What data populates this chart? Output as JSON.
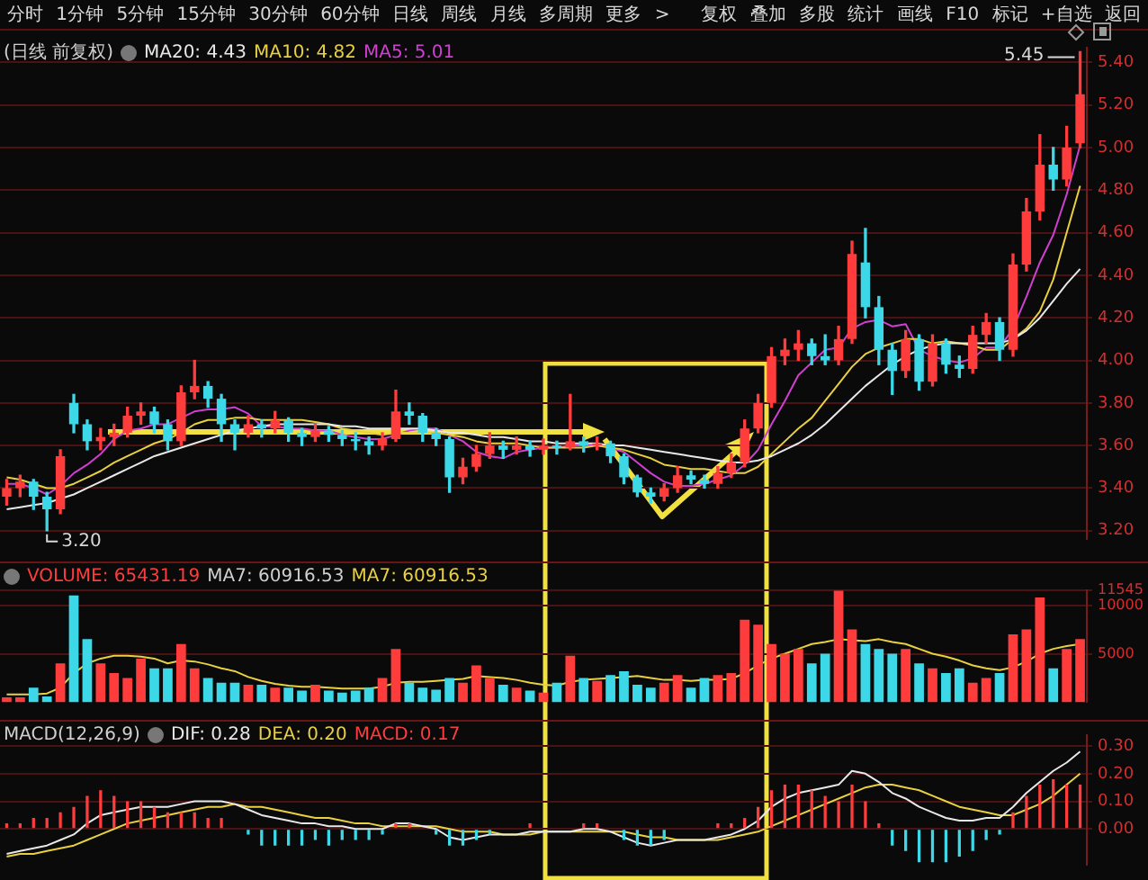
{
  "chart_data": [
    {
      "type": "candlestick",
      "title": "(日线 前复权)",
      "legend": "top left",
      "grid": "y",
      "tick_labels": "y",
      "annotations": [
        "分时 1分钟 5分钟 15分钟 30分钟 60分钟 日线 周线 月线 多周期 更多 >",
        "复权 叠加 多股 统计 画线 F10 标记 +自选 返回",
        "5.45",
        "3.20"
      ],
      "categories": [
        null,
        null,
        null,
        null,
        null,
        null,
        null,
        null,
        null,
        null,
        null,
        null,
        null,
        null,
        null,
        null,
        null,
        null,
        null,
        null,
        null,
        null,
        null,
        null,
        null,
        null,
        null,
        null,
        null,
        null,
        null,
        null,
        null,
        null,
        null,
        null,
        null,
        null,
        null,
        null,
        null,
        null,
        null,
        null,
        null,
        null,
        null,
        null,
        null,
        null,
        null,
        null,
        null,
        null,
        null,
        null,
        null,
        null,
        null,
        null,
        null,
        null,
        null,
        null,
        null,
        null,
        null,
        null,
        null,
        null,
        null,
        null,
        null,
        null,
        null,
        null,
        null,
        null,
        null,
        null,
        null
      ],
      "ylim": [
        3.16,
        5.47
      ],
      "yticks": [
        {
          "value": 3.2,
          "label": "3.20"
        },
        {
          "value": 3.4,
          "label": "3.40"
        },
        {
          "value": 3.6,
          "label": "3.60"
        },
        {
          "value": 3.8,
          "label": "3.80"
        },
        {
          "value": 4.0,
          "label": "4.00"
        },
        {
          "value": 4.2,
          "label": "4.20"
        },
        {
          "value": 4.4,
          "label": "4.40"
        },
        {
          "value": 4.6,
          "label": "4.60"
        },
        {
          "value": 4.8,
          "label": "4.80"
        },
        {
          "value": 5.0,
          "label": "5.00"
        },
        {
          "value": 5.2,
          "label": "5.20"
        },
        {
          "value": 5.4,
          "label": "5.40"
        }
      ],
      "ohlc": [
        [
          3.36,
          3.44,
          3.32,
          3.4
        ],
        [
          3.4,
          3.46,
          3.36,
          3.43
        ],
        [
          3.43,
          3.44,
          3.3,
          3.36
        ],
        [
          3.36,
          3.38,
          3.2,
          3.3
        ],
        [
          3.3,
          3.58,
          3.28,
          3.55
        ],
        [
          3.8,
          3.84,
          3.66,
          3.7
        ],
        [
          3.7,
          3.72,
          3.58,
          3.62
        ],
        [
          3.62,
          3.68,
          3.58,
          3.64
        ],
        [
          3.64,
          3.7,
          3.6,
          3.66
        ],
        [
          3.66,
          3.78,
          3.64,
          3.74
        ],
        [
          3.74,
          3.8,
          3.7,
          3.76
        ],
        [
          3.76,
          3.78,
          3.66,
          3.7
        ],
        [
          3.7,
          3.72,
          3.58,
          3.62
        ],
        [
          3.62,
          3.88,
          3.6,
          3.85
        ],
        [
          3.85,
          4.0,
          3.82,
          3.88
        ],
        [
          3.88,
          3.9,
          3.78,
          3.82
        ],
        [
          3.82,
          3.84,
          3.62,
          3.7
        ],
        [
          3.7,
          3.72,
          3.58,
          3.66
        ],
        [
          3.66,
          3.74,
          3.64,
          3.7
        ],
        [
          3.7,
          3.72,
          3.64,
          3.68
        ],
        [
          3.68,
          3.76,
          3.66,
          3.72
        ],
        [
          3.72,
          3.73,
          3.62,
          3.66
        ],
        [
          3.66,
          3.68,
          3.6,
          3.64
        ],
        [
          3.64,
          3.7,
          3.62,
          3.67
        ],
        [
          3.67,
          3.69,
          3.62,
          3.65
        ],
        [
          3.65,
          3.67,
          3.6,
          3.63
        ],
        [
          3.63,
          3.66,
          3.58,
          3.62
        ],
        [
          3.62,
          3.64,
          3.56,
          3.6
        ],
        [
          3.6,
          3.66,
          3.58,
          3.63
        ],
        [
          3.63,
          3.86,
          3.62,
          3.76
        ],
        [
          3.76,
          3.8,
          3.7,
          3.74
        ],
        [
          3.74,
          3.75,
          3.62,
          3.66
        ],
        [
          3.66,
          3.68,
          3.6,
          3.63
        ],
        [
          3.63,
          3.64,
          3.38,
          3.45
        ],
        [
          3.45,
          3.54,
          3.42,
          3.5
        ],
        [
          3.5,
          3.6,
          3.48,
          3.56
        ],
        [
          3.56,
          3.66,
          3.54,
          3.6
        ],
        [
          3.6,
          3.62,
          3.54,
          3.58
        ],
        [
          3.58,
          3.64,
          3.56,
          3.6
        ],
        [
          3.6,
          3.62,
          3.55,
          3.58
        ],
        [
          3.58,
          3.63,
          3.56,
          3.6
        ],
        [
          3.6,
          3.62,
          3.56,
          3.59
        ],
        [
          3.59,
          3.84,
          3.58,
          3.62
        ],
        [
          3.62,
          3.64,
          3.57,
          3.6
        ],
        [
          3.6,
          3.64,
          3.58,
          3.61
        ],
        [
          3.61,
          3.62,
          3.52,
          3.55
        ],
        [
          3.55,
          3.56,
          3.42,
          3.45
        ],
        [
          3.45,
          3.46,
          3.36,
          3.38
        ],
        [
          3.38,
          3.4,
          3.33,
          3.36
        ],
        [
          3.36,
          3.42,
          3.34,
          3.4
        ],
        [
          3.4,
          3.5,
          3.38,
          3.46
        ],
        [
          3.46,
          3.48,
          3.42,
          3.44
        ],
        [
          3.44,
          3.46,
          3.4,
          3.42
        ],
        [
          3.42,
          3.5,
          3.4,
          3.47
        ],
        [
          3.47,
          3.56,
          3.45,
          3.52
        ],
        [
          3.52,
          3.72,
          3.5,
          3.68
        ],
        [
          3.68,
          3.84,
          3.66,
          3.8
        ],
        [
          3.8,
          4.06,
          3.78,
          4.02
        ],
        [
          4.02,
          4.1,
          3.98,
          4.05
        ],
        [
          4.05,
          4.14,
          4.0,
          4.08
        ],
        [
          4.08,
          4.1,
          3.98,
          4.02
        ],
        [
          4.02,
          4.12,
          3.98,
          4.0
        ],
        [
          4.0,
          4.16,
          3.98,
          4.1
        ],
        [
          4.1,
          4.56,
          4.08,
          4.5
        ],
        [
          4.46,
          4.62,
          4.2,
          4.25
        ],
        [
          4.25,
          4.3,
          3.98,
          4.05
        ],
        [
          4.05,
          4.08,
          3.84,
          3.95
        ],
        [
          3.95,
          4.14,
          3.92,
          4.1
        ],
        [
          4.1,
          4.12,
          3.86,
          3.9
        ],
        [
          3.9,
          4.12,
          3.88,
          4.08
        ],
        [
          4.08,
          4.1,
          3.94,
          3.98
        ],
        [
          3.98,
          4.02,
          3.92,
          3.96
        ],
        [
          3.96,
          4.16,
          3.94,
          4.12
        ],
        [
          4.12,
          4.22,
          4.08,
          4.18
        ],
        [
          4.18,
          4.2,
          4.0,
          4.05
        ],
        [
          4.05,
          4.5,
          4.02,
          4.45
        ],
        [
          4.45,
          4.76,
          4.42,
          4.7
        ],
        [
          4.7,
          5.06,
          4.66,
          4.92
        ],
        [
          4.92,
          5.0,
          4.8,
          4.85
        ],
        [
          4.85,
          5.1,
          4.82,
          5.0
        ],
        [
          5.02,
          5.45,
          5.0,
          5.25
        ]
      ],
      "colors": [
        "#ff3c3c",
        "#ff3c3c",
        "#3cd8e8",
        "#3cd8e8",
        "#ff3c3c",
        "#3cd8e8",
        "#3cd8e8",
        "#ff3c3c",
        "#ff3c3c",
        "#ff3c3c",
        "#ff3c3c",
        "#3cd8e8",
        "#3cd8e8",
        "#ff3c3c",
        "#ff3c3c",
        "#3cd8e8",
        "#3cd8e8",
        "#3cd8e8",
        "#ff3c3c",
        "#3cd8e8",
        "#ff3c3c",
        "#3cd8e8",
        "#3cd8e8",
        "#ff3c3c",
        "#3cd8e8",
        "#3cd8e8",
        "#3cd8e8",
        "#3cd8e8",
        "#ff3c3c",
        "#ff3c3c",
        "#3cd8e8",
        "#3cd8e8",
        "#3cd8e8",
        "#3cd8e8",
        "#ff3c3c",
        "#ff3c3c",
        "#ff3c3c",
        "#3cd8e8",
        "#ff3c3c",
        "#3cd8e8",
        "#ff3c3c",
        "#3cd8e8",
        "#ff3c3c",
        "#3cd8e8",
        "#ff3c3c",
        "#3cd8e8",
        "#3cd8e8",
        "#3cd8e8",
        "#3cd8e8",
        "#ff3c3c",
        "#ff3c3c",
        "#3cd8e8",
        "#3cd8e8",
        "#ff3c3c",
        "#ff3c3c",
        "#ff3c3c",
        "#ff3c3c",
        "#ff3c3c",
        "#ff3c3c",
        "#ff3c3c",
        "#3cd8e8",
        "#3cd8e8",
        "#ff3c3c",
        "#ff3c3c",
        "#3cd8e8",
        "#3cd8e8",
        "#3cd8e8",
        "#ff3c3c",
        "#3cd8e8",
        "#ff3c3c",
        "#3cd8e8",
        "#3cd8e8",
        "#ff3c3c",
        "#ff3c3c",
        "#3cd8e8",
        "#ff3c3c",
        "#ff3c3c",
        "#ff3c3c",
        "#3cd8e8",
        "#ff3c3c",
        "#ff3c3c"
      ],
      "series": [
        {
          "name": "MA20: 4.43",
          "type": "line",
          "color": "#e8e8e8",
          "values": [
            3.3,
            3.31,
            3.32,
            3.33,
            3.35,
            3.37,
            3.4,
            3.43,
            3.46,
            3.49,
            3.52,
            3.55,
            3.57,
            3.59,
            3.61,
            3.63,
            3.65,
            3.67,
            3.68,
            3.69,
            3.7,
            3.7,
            3.7,
            3.7,
            3.7,
            3.69,
            3.69,
            3.68,
            3.68,
            3.68,
            3.68,
            3.68,
            3.67,
            3.66,
            3.66,
            3.65,
            3.64,
            3.64,
            3.63,
            3.62,
            3.62,
            3.61,
            3.61,
            3.61,
            3.61,
            3.6,
            3.6,
            3.59,
            3.58,
            3.57,
            3.56,
            3.55,
            3.54,
            3.53,
            3.52,
            3.52,
            3.53,
            3.55,
            3.58,
            3.61,
            3.65,
            3.7,
            3.76,
            3.82,
            3.88,
            3.93,
            3.98,
            4.02,
            4.05,
            4.07,
            4.08,
            4.08,
            4.08,
            4.08,
            4.08,
            4.1,
            4.14,
            4.2,
            4.28,
            4.36,
            4.43
          ]
        },
        {
          "name": "MA10: 4.82",
          "type": "line",
          "color": "#e8d040",
          "values": [
            3.45,
            3.44,
            3.42,
            3.4,
            3.4,
            3.42,
            3.45,
            3.48,
            3.52,
            3.55,
            3.58,
            3.61,
            3.63,
            3.66,
            3.7,
            3.72,
            3.72,
            3.73,
            3.73,
            3.72,
            3.72,
            3.72,
            3.72,
            3.71,
            3.7,
            3.68,
            3.67,
            3.66,
            3.65,
            3.66,
            3.66,
            3.66,
            3.66,
            3.65,
            3.64,
            3.62,
            3.61,
            3.61,
            3.61,
            3.6,
            3.59,
            3.59,
            3.59,
            3.59,
            3.6,
            3.59,
            3.58,
            3.56,
            3.54,
            3.51,
            3.5,
            3.49,
            3.49,
            3.48,
            3.47,
            3.47,
            3.5,
            3.56,
            3.62,
            3.68,
            3.73,
            3.81,
            3.89,
            3.97,
            4.03,
            4.06,
            4.08,
            4.1,
            4.1,
            4.08,
            4.09,
            4.08,
            4.07,
            4.05,
            4.05,
            4.1,
            4.15,
            4.23,
            4.38,
            4.6,
            4.82
          ]
        },
        {
          "name": "MA5: 5.01",
          "type": "line",
          "color": "#d040d0",
          "values": [
            3.42,
            3.42,
            3.4,
            3.37,
            3.41,
            3.47,
            3.51,
            3.56,
            3.63,
            3.67,
            3.68,
            3.7,
            3.7,
            3.73,
            3.76,
            3.77,
            3.77,
            3.78,
            3.75,
            3.69,
            3.69,
            3.68,
            3.68,
            3.67,
            3.67,
            3.65,
            3.64,
            3.63,
            3.63,
            3.65,
            3.67,
            3.68,
            3.68,
            3.65,
            3.62,
            3.57,
            3.55,
            3.54,
            3.57,
            3.58,
            3.59,
            3.59,
            3.6,
            3.6,
            3.6,
            3.59,
            3.57,
            3.52,
            3.47,
            3.43,
            3.41,
            3.41,
            3.42,
            3.44,
            3.46,
            3.51,
            3.58,
            3.7,
            3.81,
            3.93,
            3.99,
            4.05,
            4.06,
            4.15,
            4.18,
            4.19,
            4.16,
            4.17,
            4.05,
            4.02,
            4.0,
            3.99,
            4.01,
            4.06,
            4.06,
            4.15,
            4.3,
            4.46,
            4.59,
            4.78,
            5.01
          ]
        }
      ]
    },
    {
      "type": "bar",
      "legend": "top left",
      "grid": "y",
      "tick_labels": "y",
      "annotations": [
        "MA7: 60916.53"
      ],
      "categories": [
        null,
        null,
        null,
        null,
        null,
        null,
        null,
        null,
        null,
        null,
        null,
        null,
        null,
        null,
        null,
        null,
        null,
        null,
        null,
        null,
        null,
        null,
        null,
        null,
        null,
        null,
        null,
        null,
        null,
        null,
        null,
        null,
        null,
        null,
        null,
        null,
        null,
        null,
        null,
        null,
        null,
        null,
        null,
        null,
        null,
        null,
        null,
        null,
        null,
        null,
        null,
        null,
        null,
        null,
        null,
        null,
        null,
        null,
        null,
        null,
        null,
        null,
        null,
        null,
        null,
        null,
        null,
        null,
        null,
        null,
        null,
        null,
        null,
        null,
        null,
        null,
        null,
        null,
        null,
        null,
        null
      ],
      "ylim": [
        0,
        11545
      ],
      "yticks": [
        5000,
        10000,
        11545
      ],
      "series": [
        {
          "name": "VOLUME: 65431.19",
          "type": "bar",
          "values": [
            500,
            500,
            1500,
            600,
            4000,
            11000,
            6500,
            4000,
            3000,
            2500,
            4500,
            3500,
            3500,
            6000,
            3500,
            2500,
            2000,
            2000,
            1800,
            1800,
            1500,
            1500,
            1200,
            1800,
            1200,
            1000,
            1200,
            1500,
            2500,
            5500,
            2000,
            1500,
            1300,
            2500,
            2000,
            3800,
            2500,
            1800,
            1500,
            1200,
            1000,
            2000,
            4800,
            2500,
            2200,
            2800,
            3200,
            1800,
            1500,
            2000,
            2800,
            1500,
            2500,
            2800,
            3000,
            8500,
            8000,
            6000,
            5000,
            5500,
            4000,
            5000,
            11500,
            7500,
            6000,
            5500,
            5000,
            5500,
            4000,
            3500,
            3000,
            3500,
            2000,
            2500,
            3000,
            7000,
            7500,
            10800,
            3500,
            5500,
            6500
          ],
          "colors": [
            "#ff3c3c",
            "#ff3c3c",
            "#3cd8e8",
            "#3cd8e8",
            "#ff3c3c",
            "#3cd8e8",
            "#3cd8e8",
            "#ff3c3c",
            "#ff3c3c",
            "#ff3c3c",
            "#ff3c3c",
            "#3cd8e8",
            "#3cd8e8",
            "#ff3c3c",
            "#ff3c3c",
            "#3cd8e8",
            "#3cd8e8",
            "#3cd8e8",
            "#ff3c3c",
            "#3cd8e8",
            "#ff3c3c",
            "#3cd8e8",
            "#3cd8e8",
            "#ff3c3c",
            "#3cd8e8",
            "#3cd8e8",
            "#3cd8e8",
            "#3cd8e8",
            "#ff3c3c",
            "#ff3c3c",
            "#3cd8e8",
            "#3cd8e8",
            "#3cd8e8",
            "#3cd8e8",
            "#ff3c3c",
            "#ff3c3c",
            "#ff3c3c",
            "#3cd8e8",
            "#ff3c3c",
            "#3cd8e8",
            "#ff3c3c",
            "#3cd8e8",
            "#ff3c3c",
            "#3cd8e8",
            "#ff3c3c",
            "#3cd8e8",
            "#3cd8e8",
            "#3cd8e8",
            "#3cd8e8",
            "#ff3c3c",
            "#ff3c3c",
            "#3cd8e8",
            "#3cd8e8",
            "#ff3c3c",
            "#ff3c3c",
            "#ff3c3c",
            "#ff3c3c",
            "#ff3c3c",
            "#ff3c3c",
            "#ff3c3c",
            "#3cd8e8",
            "#3cd8e8",
            "#ff3c3c",
            "#ff3c3c",
            "#3cd8e8",
            "#3cd8e8",
            "#3cd8e8",
            "#ff3c3c",
            "#3cd8e8",
            "#ff3c3c",
            "#3cd8e8",
            "#3cd8e8",
            "#ff3c3c",
            "#ff3c3c",
            "#3cd8e8",
            "#ff3c3c",
            "#ff3c3c",
            "#ff3c3c",
            "#3cd8e8",
            "#ff3c3c",
            "#ff3c3c"
          ]
        },
        {
          "name": "MA7: 60916.53",
          "type": "line",
          "color": "#e8d040",
          "values": [
            800,
            800,
            800,
            900,
            1500,
            3000,
            4000,
            4500,
            4800,
            4800,
            4700,
            4500,
            4000,
            4300,
            4200,
            3900,
            3500,
            3200,
            2600,
            2200,
            1900,
            1700,
            1600,
            1600,
            1500,
            1400,
            1400,
            1400,
            1600,
            2000,
            2100,
            2100,
            2200,
            2300,
            2400,
            2700,
            2600,
            2500,
            2300,
            2000,
            1800,
            1700,
            2100,
            2300,
            2400,
            2500,
            2600,
            2700,
            2500,
            2300,
            2300,
            2200,
            2300,
            2300,
            2400,
            3000,
            3800,
            4500,
            5000,
            5500,
            6000,
            6200,
            6500,
            6400,
            6300,
            6500,
            6200,
            6000,
            5500,
            5000,
            4700,
            4300,
            3800,
            3500,
            3300,
            3600,
            4200,
            5000,
            5500,
            5800,
            6000
          ]
        }
      ]
    },
    {
      "type": "line",
      "title": "MACD(12,26,9)",
      "legend": "top left",
      "grid": "y",
      "tick_labels": "y",
      "categories": [
        null,
        null,
        null,
        null,
        null,
        null,
        null,
        null,
        null,
        null,
        null,
        null,
        null,
        null,
        null,
        null,
        null,
        null,
        null,
        null,
        null,
        null,
        null,
        null,
        null,
        null,
        null,
        null,
        null,
        null,
        null,
        null,
        null,
        null,
        null,
        null,
        null,
        null,
        null,
        null,
        null,
        null,
        null,
        null,
        null,
        null,
        null,
        null,
        null,
        null,
        null,
        null,
        null,
        null,
        null,
        null,
        null,
        null,
        null,
        null,
        null,
        null,
        null,
        null,
        null,
        null,
        null,
        null,
        null,
        null,
        null,
        null,
        null,
        null,
        null,
        null,
        null,
        null,
        null,
        null,
        null
      ],
      "ylim": [
        -0.13,
        0.34
      ],
      "yticks": [
        {
          "value": 0,
          "label": "0.00"
        },
        {
          "value": 0.1,
          "label": "0.10"
        },
        {
          "value": 0.2,
          "label": "0.20"
        },
        {
          "value": 0.3,
          "label": "0.30"
        }
      ],
      "series": [
        {
          "name": "DIF: 0.28",
          "type": "line",
          "color": "#e8e8e8",
          "values": [
            -0.09,
            -0.08,
            -0.07,
            -0.06,
            -0.04,
            -0.02,
            0.02,
            0.05,
            0.06,
            0.07,
            0.08,
            0.08,
            0.08,
            0.09,
            0.1,
            0.1,
            0.1,
            0.09,
            0.07,
            0.05,
            0.04,
            0.03,
            0.02,
            0.02,
            0.01,
            0.01,
            0.0,
            0.0,
            0.0,
            0.02,
            0.02,
            0.01,
            0.0,
            -0.03,
            -0.04,
            -0.03,
            -0.02,
            -0.02,
            -0.02,
            -0.01,
            -0.01,
            -0.01,
            -0.01,
            0.0,
            0.0,
            -0.01,
            -0.03,
            -0.05,
            -0.06,
            -0.05,
            -0.04,
            -0.04,
            -0.04,
            -0.03,
            -0.02,
            0.0,
            0.03,
            0.08,
            0.11,
            0.13,
            0.14,
            0.15,
            0.16,
            0.21,
            0.2,
            0.17,
            0.13,
            0.11,
            0.08,
            0.06,
            0.04,
            0.03,
            0.03,
            0.04,
            0.04,
            0.08,
            0.13,
            0.17,
            0.21,
            0.24,
            0.28
          ]
        },
        {
          "name": "DEA: 0.20",
          "type": "line",
          "color": "#e8d040",
          "values": [
            -0.1,
            -0.09,
            -0.09,
            -0.08,
            -0.07,
            -0.06,
            -0.04,
            -0.02,
            0.0,
            0.02,
            0.03,
            0.04,
            0.05,
            0.06,
            0.07,
            0.08,
            0.08,
            0.09,
            0.08,
            0.08,
            0.07,
            0.06,
            0.05,
            0.04,
            0.04,
            0.03,
            0.02,
            0.02,
            0.01,
            0.01,
            0.01,
            0.01,
            0.01,
            0.0,
            -0.01,
            -0.01,
            -0.01,
            -0.02,
            -0.02,
            -0.02,
            -0.01,
            -0.01,
            -0.01,
            -0.01,
            -0.01,
            -0.01,
            -0.01,
            -0.02,
            -0.03,
            -0.03,
            -0.04,
            -0.04,
            -0.04,
            -0.04,
            -0.03,
            -0.02,
            -0.01,
            0.01,
            0.03,
            0.05,
            0.07,
            0.09,
            0.11,
            0.13,
            0.15,
            0.16,
            0.16,
            0.15,
            0.14,
            0.12,
            0.1,
            0.08,
            0.07,
            0.06,
            0.05,
            0.05,
            0.07,
            0.09,
            0.12,
            0.16,
            0.2
          ]
        },
        {
          "name": "MACD: 0.17",
          "type": "bar",
          "values": [
            0.02,
            0.02,
            0.04,
            0.04,
            0.06,
            0.08,
            0.12,
            0.14,
            0.12,
            0.1,
            0.1,
            0.08,
            0.06,
            0.06,
            0.06,
            0.04,
            0.04,
            0.0,
            -0.02,
            -0.06,
            -0.06,
            -0.06,
            -0.06,
            -0.04,
            -0.06,
            -0.04,
            -0.04,
            -0.04,
            -0.02,
            0.02,
            0.02,
            0.0,
            -0.02,
            -0.06,
            -0.06,
            -0.04,
            -0.02,
            0.0,
            0.0,
            0.02,
            0.0,
            0.0,
            0.0,
            0.02,
            0.02,
            0.0,
            -0.04,
            -0.06,
            -0.06,
            -0.04,
            0.0,
            0.0,
            0.0,
            0.02,
            0.02,
            0.04,
            0.08,
            0.14,
            0.16,
            0.16,
            0.14,
            0.12,
            0.1,
            0.16,
            0.1,
            0.02,
            -0.06,
            -0.08,
            -0.12,
            -0.12,
            -0.12,
            -0.1,
            -0.08,
            -0.04,
            -0.02,
            0.06,
            0.12,
            0.16,
            0.18,
            0.16,
            0.16
          ],
          "colors": [
            "#ff3c3c",
            "#ff3c3c",
            "#ff3c3c",
            "#ff3c3c",
            "#ff3c3c",
            "#ff3c3c",
            "#ff3c3c",
            "#ff3c3c",
            "#ff3c3c",
            "#ff3c3c",
            "#ff3c3c",
            "#ff3c3c",
            "#ff3c3c",
            "#ff3c3c",
            "#ff3c3c",
            "#ff3c3c",
            "#ff3c3c",
            "#ff3c3c",
            "#3cd8e8",
            "#3cd8e8",
            "#3cd8e8",
            "#3cd8e8",
            "#3cd8e8",
            "#3cd8e8",
            "#3cd8e8",
            "#3cd8e8",
            "#3cd8e8",
            "#3cd8e8",
            "#3cd8e8",
            "#ff3c3c",
            "#ff3c3c",
            "#ff3c3c",
            "#3cd8e8",
            "#3cd8e8",
            "#3cd8e8",
            "#3cd8e8",
            "#3cd8e8",
            "#ff3c3c",
            "#ff3c3c",
            "#ff3c3c",
            "#ff3c3c",
            "#ff3c3c",
            "#ff3c3c",
            "#ff3c3c",
            "#ff3c3c",
            "#ff3c3c",
            "#3cd8e8",
            "#3cd8e8",
            "#3cd8e8",
            "#3cd8e8",
            "#ff3c3c",
            "#ff3c3c",
            "#ff3c3c",
            "#ff3c3c",
            "#ff3c3c",
            "#ff3c3c",
            "#ff3c3c",
            "#ff3c3c",
            "#ff3c3c",
            "#ff3c3c",
            "#ff3c3c",
            "#ff3c3c",
            "#ff3c3c",
            "#ff3c3c",
            "#ff3c3c",
            "#ff3c3c",
            "#3cd8e8",
            "#3cd8e8",
            "#3cd8e8",
            "#3cd8e8",
            "#3cd8e8",
            "#3cd8e8",
            "#3cd8e8",
            "#3cd8e8",
            "#3cd8e8",
            "#ff3c3c",
            "#ff3c3c",
            "#ff3c3c",
            "#ff3c3c",
            "#ff3c3c",
            "#ff3c3c"
          ]
        }
      ]
    }
  ]
}
